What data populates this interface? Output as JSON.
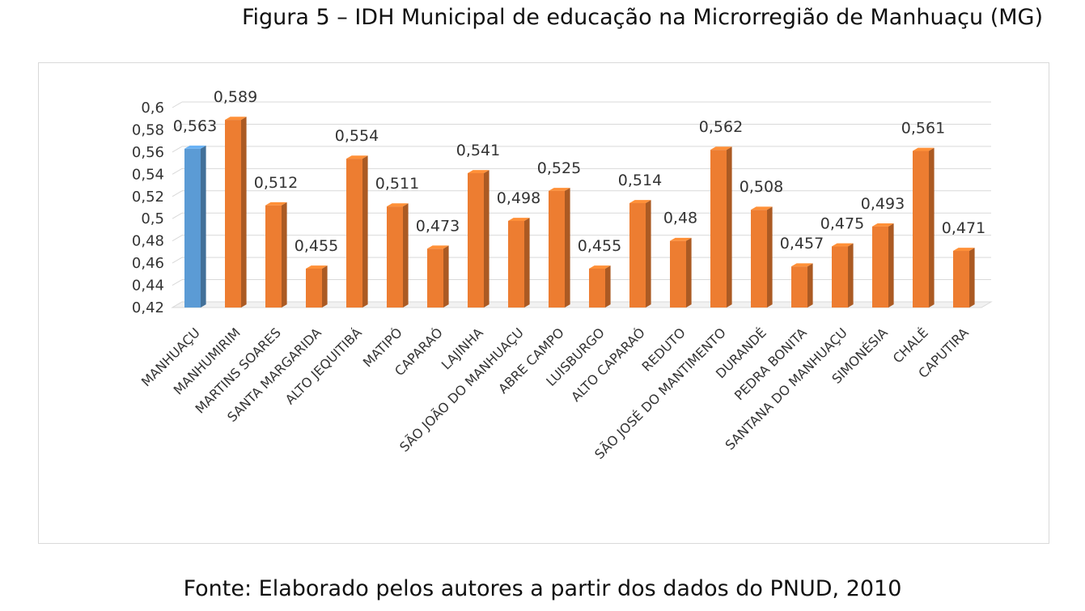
{
  "figure": {
    "title": "Figura 5 – IDH Municipal de educação na Microrregião de Manhuaçu (MG)",
    "source": "Fonte: Elaborado pelos autores a partir dos dados do PNUD, 2010"
  },
  "chart_data": {
    "type": "bar",
    "title": "",
    "xlabel": "",
    "ylabel": "",
    "ylim": [
      0.42,
      0.6
    ],
    "yticks": [
      "0,42",
      "0,44",
      "0,46",
      "0,48",
      "0,5",
      "0,52",
      "0,54",
      "0,56",
      "0,58",
      "0,6"
    ],
    "grid": true,
    "legend": "none",
    "highlight_color": "#5b9bd5",
    "bar_color": "#ed7d31",
    "categories": [
      "MANHUAÇU",
      "MANHUMIRIM",
      "MARTINS SOARES",
      "SANTA MARGARIDA",
      "ALTO JEQUITIBÁ",
      "MATIPÓ",
      "CAPARAÓ",
      "LAJINHA",
      "SÃO JOÃO DO MANHUAÇU",
      "ABRE CAMPO",
      "LUISBURGO",
      "ALTO CAPARAÓ",
      "REDUTO",
      "SÃO JOSÉ DO MANTIMENTO",
      "DURANDÉ",
      "PEDRA BONITA",
      "SANTANA DO MANHUAÇU",
      "SIMONÉSIA",
      "CHALÉ",
      "CAPUTIRA"
    ],
    "values": [
      0.563,
      0.589,
      0.512,
      0.455,
      0.554,
      0.511,
      0.473,
      0.541,
      0.498,
      0.525,
      0.455,
      0.514,
      0.48,
      0.562,
      0.508,
      0.457,
      0.475,
      0.493,
      0.561,
      0.471
    ],
    "data_labels": [
      "0,563",
      "0,589",
      "0,512",
      "0,455",
      "0,554",
      "0,511",
      "0,473",
      "0,541",
      "0,498",
      "0,525",
      "0,455",
      "0,514",
      "0,48",
      "0,562",
      "0,508",
      "0,457",
      "0,475",
      "0,493",
      "0,561",
      "0,471"
    ],
    "highlighted": [
      "MANHUAÇU"
    ]
  }
}
